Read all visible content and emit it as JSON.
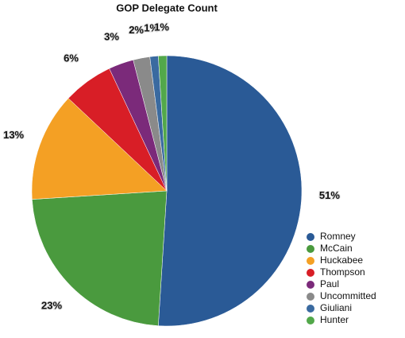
{
  "chart_data": {
    "type": "pie",
    "title": "GOP Delegate Count",
    "categories": [
      "Romney",
      "McCain",
      "Huckabee",
      "Thompson",
      "Paul",
      "Uncommitted",
      "Giuliani",
      "Hunter"
    ],
    "values": [
      51,
      23,
      13,
      6,
      3,
      2,
      1,
      1
    ],
    "value_labels": [
      "51%",
      "23%",
      "13%",
      "6%",
      "3%",
      "2%",
      "1%",
      "1%"
    ],
    "colors": [
      "#2a5a96",
      "#4a9a3e",
      "#f4a024",
      "#d81e26",
      "#7b2a7a",
      "#8a8a8a",
      "#3a6aa0",
      "#52a84a"
    ],
    "legend": "bottom-right"
  }
}
